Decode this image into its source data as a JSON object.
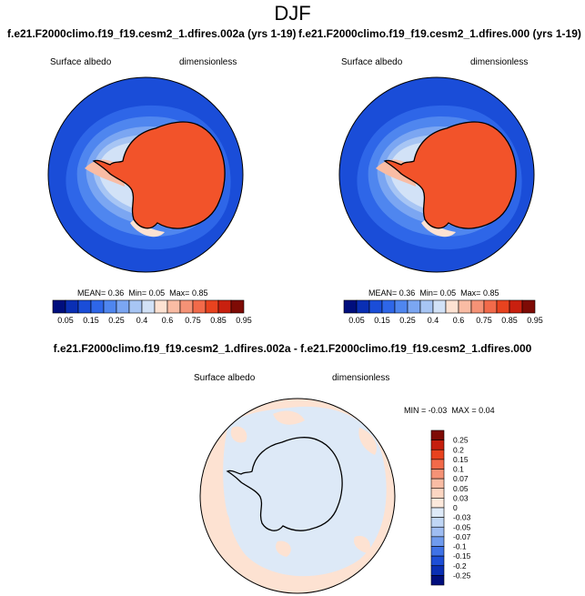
{
  "season": "DJF",
  "panels": [
    {
      "title": "f.e21.F2000climo.f19_f19.cesm2_1.dfires.002a (yrs 1-19)",
      "variable": "Surface albedo",
      "units": "dimensionless",
      "stats": {
        "mean_label": "MEAN=",
        "mean": "0.36",
        "min_label": "Min=",
        "min": "0.05",
        "max_label": "Max=",
        "max": "0.85"
      }
    },
    {
      "title": "f.e21.F2000climo.f19_f19.cesm2_1.dfires.000 (yrs 1-19)",
      "variable": "Surface albedo",
      "units": "dimensionless",
      "stats": {
        "mean_label": "MEAN=",
        "mean": "0.36",
        "min_label": "Min=",
        "min": "0.05",
        "max_label": "Max=",
        "max": "0.85"
      }
    }
  ],
  "colorbar_abs": {
    "labels": [
      "0.05",
      "0.15",
      "0.25",
      "0.4",
      "0.6",
      "0.75",
      "0.85",
      "0.95"
    ],
    "colors": [
      "#000e7d",
      "#0a2fb4",
      "#1a4dd8",
      "#2e66e8",
      "#4f86ef",
      "#7ba6f2",
      "#a7c5f4",
      "#d2e2f7",
      "#fde2d2",
      "#f9bca4",
      "#f59276",
      "#f26a4a",
      "#e8431f",
      "#c9200f",
      "#7e0b05"
    ]
  },
  "diff_panel": {
    "title": "f.e21.F2000climo.f19_f19.cesm2_1.dfires.002a - f.e21.F2000climo.f19_f19.cesm2_1.dfires.000",
    "variable": "Surface albedo",
    "units": "dimensionless",
    "stats": {
      "min_label": "MIN =",
      "min": "-0.03",
      "max_label": "MAX =",
      "max": "0.04"
    }
  },
  "colorbar_diff": {
    "labels": [
      "0.25",
      "0.2",
      "0.15",
      "0.1",
      "0.07",
      "0.05",
      "0.03",
      "0",
      "-0.03",
      "-0.05",
      "-0.07",
      "-0.1",
      "-0.15",
      "-0.2",
      "-0.25"
    ],
    "colors": [
      "#7e0b05",
      "#c51f0e",
      "#e8431f",
      "#f26a4a",
      "#f59276",
      "#f9bca4",
      "#fcd6c2",
      "#fde9dc",
      "#deeaf8",
      "#c0d6f5",
      "#9fbdf2",
      "#6f9bee",
      "#3f72e6",
      "#1d4ed6",
      "#0a2fb4",
      "#000e7d"
    ]
  },
  "colors": {
    "ocean": "#1a4dd8",
    "ice": "#f2532a",
    "diff_bg": "#dde9f7",
    "diff_pos": "#fde2d2"
  }
}
